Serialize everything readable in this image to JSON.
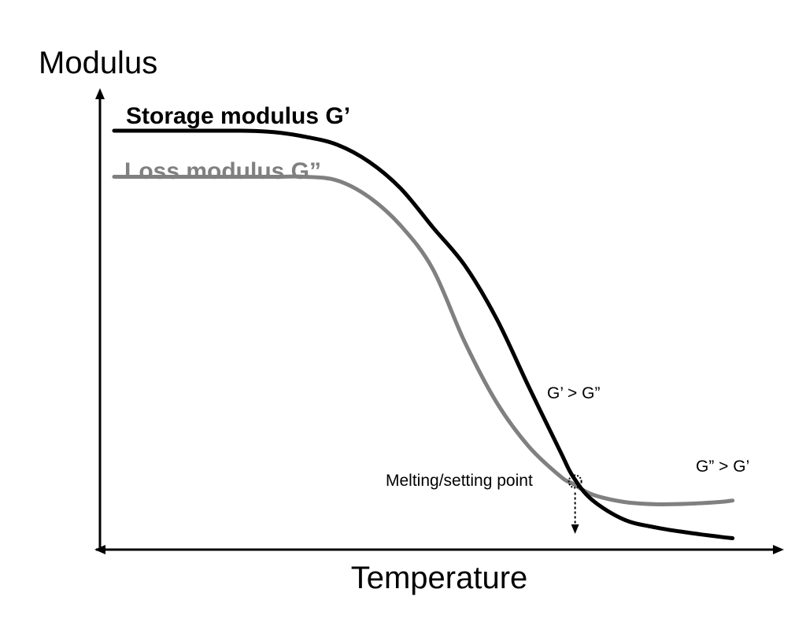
{
  "chart_data": {
    "type": "line",
    "title": "",
    "xlabel": "Temperature",
    "ylabel": "Modulus",
    "x_ticks_shown": false,
    "y_ticks_shown": false,
    "grid": false,
    "xlim": [
      0,
      100
    ],
    "ylim": [
      0,
      100
    ],
    "series": [
      {
        "name": "Storage modulus G’",
        "color": "#000000",
        "x": [
          0,
          10,
          20,
          25,
          30,
          35,
          40,
          45,
          50,
          55,
          60,
          65,
          70,
          72,
          75,
          80,
          85,
          90,
          95,
          97
        ],
        "y": [
          90.5,
          90.5,
          90.5,
          90.2,
          89.2,
          87.5,
          83.8,
          78.0,
          69.7,
          61.5,
          50.0,
          35.5,
          21.4,
          16.0,
          11.0,
          6.8,
          5.1,
          4.0,
          3.1,
          2.8
        ]
      },
      {
        "name": "Loss modulus G”",
        "color": "#808080",
        "x": [
          0,
          10,
          20,
          25,
          30,
          35,
          40,
          45,
          50,
          55,
          60,
          65,
          70,
          72,
          75,
          80,
          85,
          90,
          95,
          97
        ],
        "y": [
          80.6,
          80.6,
          80.6,
          80.6,
          80.6,
          79.8,
          76.2,
          70.0,
          60.7,
          45.0,
          32.0,
          22.6,
          16.1,
          14.5,
          12.2,
          10.6,
          10.1,
          10.2,
          10.6,
          10.9
        ]
      }
    ],
    "annotations": {
      "gt_before": "G’ > G”",
      "gt_after": "G” > G’",
      "crossover": "Melting/setting point",
      "crossover_point": {
        "x": 72.3,
        "y": 15.0
      }
    },
    "legend": "inline-top-left"
  },
  "colors": {
    "axis": "#000000",
    "storage": "#000000",
    "loss": "#808080",
    "background": "#ffffff"
  }
}
